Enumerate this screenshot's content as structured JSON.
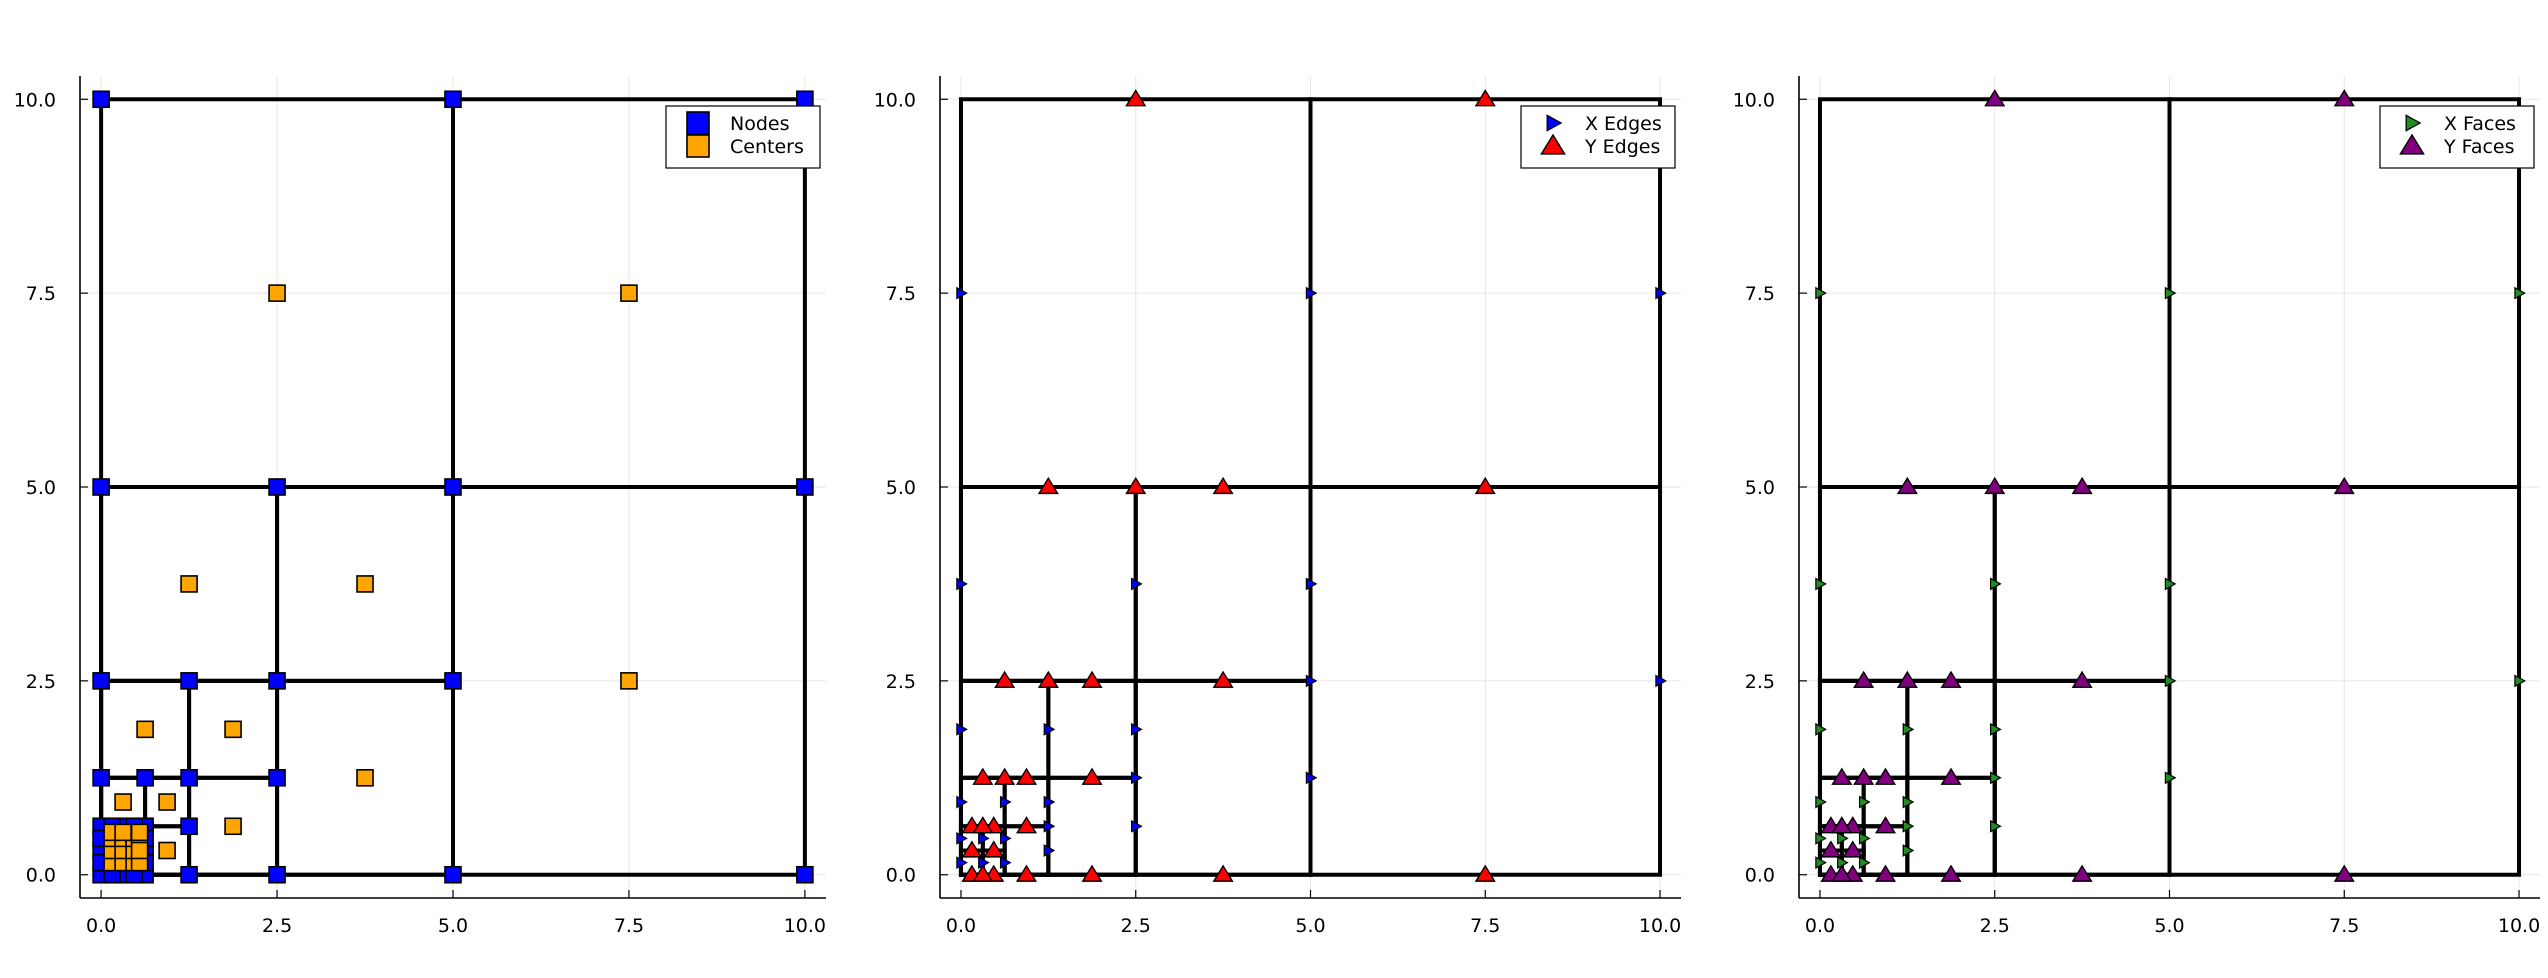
{
  "chart_data": [
    {
      "type": "scatter",
      "title": "",
      "xlabel": "",
      "ylabel": "",
      "xlim": [
        -0.3,
        10.3
      ],
      "ylim": [
        -0.3,
        10.3
      ],
      "xticks": [
        0,
        2.5,
        5,
        7.5,
        10
      ],
      "yticks": [
        0,
        2.5,
        5,
        7.5,
        10
      ],
      "xtick_labels": [
        "0.0",
        "2.5",
        "5.0",
        "7.5",
        "10.0"
      ],
      "ytick_labels": [
        "0.0",
        "2.5",
        "5.0",
        "7.5",
        "10.0"
      ],
      "grid": true,
      "legend_position": "top-right",
      "mesh_cells": [
        [
          0,
          0,
          5,
          5
        ],
        [
          5,
          0,
          5,
          5
        ],
        [
          0,
          5,
          5,
          5
        ],
        [
          5,
          5,
          5,
          5
        ],
        [
          0,
          0,
          2.5,
          2.5
        ],
        [
          2.5,
          0,
          2.5,
          2.5
        ],
        [
          0,
          2.5,
          2.5,
          2.5
        ],
        [
          2.5,
          2.5,
          2.5,
          2.5
        ],
        [
          0,
          0,
          1.25,
          1.25
        ],
        [
          1.25,
          0,
          1.25,
          1.25
        ],
        [
          0,
          1.25,
          1.25,
          1.25
        ],
        [
          1.25,
          1.25,
          1.25,
          1.25
        ],
        [
          0,
          0,
          0.625,
          0.625
        ],
        [
          0.625,
          0,
          0.625,
          0.625
        ],
        [
          0,
          0.625,
          0.625,
          0.625
        ],
        [
          0.625,
          0.625,
          0.625,
          0.625
        ],
        [
          0,
          0,
          0.3125,
          0.3125
        ],
        [
          0.3125,
          0,
          0.3125,
          0.3125
        ],
        [
          0,
          0.3125,
          0.3125,
          0.3125
        ],
        [
          0.3125,
          0.3125,
          0.3125,
          0.3125
        ]
      ],
      "series": [
        {
          "name": "Nodes",
          "marker": "square",
          "color": "#0000ff",
          "points": [
            [
              0,
              0
            ],
            [
              0,
              10
            ],
            [
              5,
              10
            ],
            [
              10,
              10
            ],
            [
              0,
              5
            ],
            [
              2.5,
              5
            ],
            [
              5,
              5
            ],
            [
              10,
              5
            ],
            [
              0,
              2.5
            ],
            [
              1.25,
              2.5
            ],
            [
              2.5,
              2.5
            ],
            [
              5,
              2.5
            ],
            [
              0,
              1.25
            ],
            [
              0.625,
              1.25
            ],
            [
              1.25,
              1.25
            ],
            [
              2.5,
              1.25
            ],
            [
              1.25,
              0.625
            ],
            [
              1.25,
              0
            ],
            [
              2.5,
              0
            ],
            [
              5,
              0
            ],
            [
              10,
              0
            ],
            [
              0,
              0.625
            ],
            [
              0.625,
              0
            ],
            [
              0.625,
              0.625
            ],
            [
              0.3125,
              0
            ],
            [
              0,
              0.3125
            ],
            [
              0.3125,
              0.3125
            ],
            [
              0.3125,
              0.625
            ],
            [
              0.625,
              0.3125
            ],
            [
              0.15625,
              0.625
            ],
            [
              0.46875,
              0.625
            ],
            [
              0.625,
              0.15625
            ],
            [
              0.625,
              0.46875
            ],
            [
              0.15625,
              0
            ],
            [
              0.46875,
              0
            ],
            [
              0,
              0.15625
            ],
            [
              0,
              0.46875
            ]
          ]
        },
        {
          "name": "Centers",
          "marker": "square",
          "color": "#ffa500",
          "points": [
            [
              2.5,
              7.5
            ],
            [
              7.5,
              7.5
            ],
            [
              1.25,
              3.75
            ],
            [
              3.75,
              3.75
            ],
            [
              7.5,
              2.5
            ],
            [
              0.625,
              1.875
            ],
            [
              1.875,
              1.875
            ],
            [
              3.75,
              1.25
            ],
            [
              0.3125,
              0.9375
            ],
            [
              0.9375,
              0.9375
            ],
            [
              0.9375,
              0.3125
            ],
            [
              1.875,
              0.625
            ],
            [
              0.15625,
              0.15625
            ],
            [
              0.15625,
              0.3125
            ],
            [
              0.15625,
              0.46875
            ],
            [
              0.3125,
              0.15625
            ],
            [
              0.3125,
              0.3125
            ],
            [
              0.3125,
              0.46875
            ],
            [
              0.46875,
              0.15625
            ],
            [
              0.46875,
              0.3125
            ],
            [
              0.46875,
              0.46875
            ],
            [
              0.15625,
              0.546875
            ],
            [
              0.46875,
              0.546875
            ],
            [
              0.546875,
              0.15625
            ],
            [
              0.546875,
              0.46875
            ],
            [
              0.546875,
              0.3125
            ],
            [
              0.3125,
              0.546875
            ],
            [
              0.546875,
              0.546875
            ]
          ]
        }
      ]
    },
    {
      "type": "scatter",
      "title": "",
      "xlabel": "",
      "ylabel": "",
      "xlim": [
        -0.3,
        10.3
      ],
      "ylim": [
        -0.3,
        10.3
      ],
      "xticks": [
        0,
        2.5,
        5,
        7.5,
        10
      ],
      "yticks": [
        0,
        2.5,
        5,
        7.5,
        10
      ],
      "xtick_labels": [
        "0.0",
        "2.5",
        "5.0",
        "7.5",
        "10.0"
      ],
      "ytick_labels": [
        "0.0",
        "2.5",
        "5.0",
        "7.5",
        "10.0"
      ],
      "grid": true,
      "legend_position": "top-right",
      "mesh_cells": "same as first panel",
      "series": [
        {
          "name": "X Edges",
          "marker": "triangle-right",
          "color": "#0000ff",
          "points": [
            [
              0,
              7.5
            ],
            [
              5,
              7.5
            ],
            [
              10,
              7.5
            ],
            [
              0,
              3.75
            ],
            [
              2.5,
              3.75
            ],
            [
              5,
              3.75
            ],
            [
              0,
              1.875
            ],
            [
              1.25,
              1.875
            ],
            [
              2.5,
              1.875
            ],
            [
              5,
              2.5
            ],
            [
              10,
              2.5
            ],
            [
              0,
              0.9375
            ],
            [
              0.625,
              0.9375
            ],
            [
              1.25,
              0.9375
            ],
            [
              2.5,
              1.25
            ],
            [
              5,
              1.25
            ],
            [
              1.25,
              0.3125
            ],
            [
              2.5,
              0.625
            ],
            [
              0,
              0.46875
            ],
            [
              0.3125,
              0.46875
            ],
            [
              0.625,
              0.46875
            ],
            [
              0,
              0.15625
            ],
            [
              0.3125,
              0.15625
            ],
            [
              0.625,
              0.15625
            ],
            [
              1.25,
              0.625
            ]
          ]
        },
        {
          "name": "Y Edges",
          "marker": "triangle-up",
          "color": "#ff0000",
          "points": [
            [
              2.5,
              10
            ],
            [
              7.5,
              10
            ],
            [
              1.25,
              5
            ],
            [
              2.5,
              5
            ],
            [
              3.75,
              5
            ],
            [
              7.5,
              5
            ],
            [
              0.625,
              2.5
            ],
            [
              1.25,
              2.5
            ],
            [
              1.875,
              2.5
            ],
            [
              3.75,
              2.5
            ],
            [
              0.3125,
              1.25
            ],
            [
              0.625,
              1.25
            ],
            [
              0.9375,
              1.25
            ],
            [
              1.875,
              1.25
            ],
            [
              0.9375,
              0.625
            ],
            [
              1.875,
              0
            ],
            [
              3.75,
              0
            ],
            [
              7.5,
              0
            ],
            [
              0.9375,
              0
            ],
            [
              0.15625,
              0.625
            ],
            [
              0.46875,
              0.625
            ],
            [
              0.15625,
              0.3125
            ],
            [
              0.46875,
              0.3125
            ],
            [
              0.15625,
              0
            ],
            [
              0.46875,
              0
            ],
            [
              0.3125,
              0.625
            ],
            [
              0.3125,
              0
            ]
          ]
        }
      ]
    },
    {
      "type": "scatter",
      "title": "",
      "xlabel": "",
      "ylabel": "",
      "xlim": [
        -0.3,
        10.3
      ],
      "ylim": [
        -0.3,
        10.3
      ],
      "xticks": [
        0,
        2.5,
        5,
        7.5,
        10
      ],
      "yticks": [
        0,
        2.5,
        5,
        7.5,
        10
      ],
      "xtick_labels": [
        "0.0",
        "2.5",
        "5.0",
        "7.5",
        "10.0"
      ],
      "ytick_labels": [
        "0.0",
        "2.5",
        "5.0",
        "7.5",
        "10.0"
      ],
      "grid": true,
      "legend_position": "top-right",
      "mesh_cells": "same as first panel",
      "series": [
        {
          "name": "X Faces",
          "marker": "triangle-right",
          "color": "#228b22",
          "points": [
            [
              0,
              7.5
            ],
            [
              5,
              7.5
            ],
            [
              10,
              7.5
            ],
            [
              0,
              3.75
            ],
            [
              2.5,
              3.75
            ],
            [
              5,
              3.75
            ],
            [
              0,
              1.875
            ],
            [
              1.25,
              1.875
            ],
            [
              2.5,
              1.875
            ],
            [
              5,
              2.5
            ],
            [
              10,
              2.5
            ],
            [
              0,
              0.9375
            ],
            [
              0.625,
              0.9375
            ],
            [
              1.25,
              0.9375
            ],
            [
              2.5,
              1.25
            ],
            [
              5,
              1.25
            ],
            [
              1.25,
              0.3125
            ],
            [
              2.5,
              0.625
            ],
            [
              0,
              0.46875
            ],
            [
              0.3125,
              0.46875
            ],
            [
              0.625,
              0.46875
            ],
            [
              0,
              0.15625
            ],
            [
              0.3125,
              0.15625
            ],
            [
              0.625,
              0.15625
            ],
            [
              1.25,
              0.625
            ]
          ]
        },
        {
          "name": "Y Faces",
          "marker": "triangle-up",
          "color": "#800080",
          "points": [
            [
              2.5,
              10
            ],
            [
              7.5,
              10
            ],
            [
              1.25,
              5
            ],
            [
              2.5,
              5
            ],
            [
              3.75,
              5
            ],
            [
              7.5,
              5
            ],
            [
              0.625,
              2.5
            ],
            [
              1.25,
              2.5
            ],
            [
              1.875,
              2.5
            ],
            [
              3.75,
              2.5
            ],
            [
              0.3125,
              1.25
            ],
            [
              0.625,
              1.25
            ],
            [
              0.9375,
              1.25
            ],
            [
              1.875,
              1.25
            ],
            [
              0.9375,
              0.625
            ],
            [
              1.875,
              0
            ],
            [
              3.75,
              0
            ],
            [
              7.5,
              0
            ],
            [
              0.9375,
              0
            ],
            [
              0.15625,
              0.625
            ],
            [
              0.46875,
              0.625
            ],
            [
              0.15625,
              0.3125
            ],
            [
              0.46875,
              0.3125
            ],
            [
              0.15625,
              0
            ],
            [
              0.46875,
              0
            ],
            [
              0.3125,
              0.625
            ],
            [
              0.3125,
              0
            ]
          ]
        }
      ]
    }
  ]
}
